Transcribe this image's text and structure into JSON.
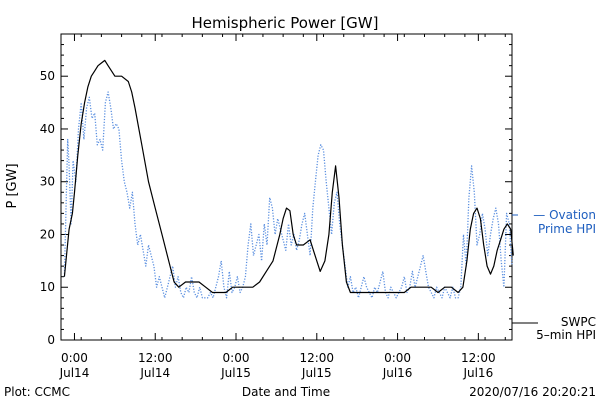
{
  "chart_data": {
    "type": "line",
    "title": "Hemispheric Power [GW]",
    "xlabel": "Date and Time",
    "ylabel": "P [GW]",
    "x_unit": "hours since 2020-07-14 00:00 UT",
    "xlim": [
      -2,
      65
    ],
    "ylim": [
      0,
      58
    ],
    "grid": false,
    "x_ticks": [
      {
        "x": 0,
        "top": "0:00",
        "bottom": "Jul14"
      },
      {
        "x": 12,
        "top": "12:00",
        "bottom": "Jul14"
      },
      {
        "x": 24,
        "top": "0:00",
        "bottom": "Jul15"
      },
      {
        "x": 36,
        "top": "12:00",
        "bottom": "Jul15"
      },
      {
        "x": 48,
        "top": "0:00",
        "bottom": "Jul16"
      },
      {
        "x": 60,
        "top": "12:00",
        "bottom": "Jul16"
      }
    ],
    "y_ticks": [
      0,
      10,
      20,
      30,
      40,
      50
    ],
    "legend": [
      {
        "lines": [
          "— Ovation",
          "Prime HPI"
        ],
        "color": "#1f5fbf",
        "style": "dotted"
      },
      {
        "lines": [
          "SWPC",
          "5–min HPI"
        ],
        "color": "#000000",
        "style": "solid"
      }
    ],
    "series": [
      {
        "name": "SWPC 5-min HPI",
        "color": "#000000",
        "style": "solid",
        "points": [
          [
            -1.5,
            12
          ],
          [
            -0.8,
            21
          ],
          [
            -0.3,
            24
          ],
          [
            0,
            28
          ],
          [
            0.5,
            35
          ],
          [
            1,
            41
          ],
          [
            1.5,
            45
          ],
          [
            2,
            48
          ],
          [
            2.5,
            50
          ],
          [
            3,
            51
          ],
          [
            3.5,
            52
          ],
          [
            4,
            52.5
          ],
          [
            4.5,
            53
          ],
          [
            5,
            52
          ],
          [
            5.5,
            51
          ],
          [
            6,
            50
          ],
          [
            7,
            50
          ],
          [
            8,
            49
          ],
          [
            8.5,
            47
          ],
          [
            9,
            44
          ],
          [
            10,
            37
          ],
          [
            11,
            30
          ],
          [
            12,
            25
          ],
          [
            13,
            20
          ],
          [
            14,
            15
          ],
          [
            14.8,
            11
          ],
          [
            15.5,
            10
          ],
          [
            16.5,
            11
          ],
          [
            17.5,
            11
          ],
          [
            18.5,
            11
          ],
          [
            19.5,
            10
          ],
          [
            20.5,
            9
          ],
          [
            21.5,
            9
          ],
          [
            22.5,
            9
          ],
          [
            23.5,
            10
          ],
          [
            24.5,
            10
          ],
          [
            25.5,
            10
          ],
          [
            26.5,
            10
          ],
          [
            27.5,
            11
          ],
          [
            28.5,
            13
          ],
          [
            29.5,
            15
          ],
          [
            30.5,
            20
          ],
          [
            31,
            23
          ],
          [
            31.5,
            25
          ],
          [
            32,
            24.5
          ],
          [
            32.5,
            20
          ],
          [
            33,
            18
          ],
          [
            34,
            18
          ],
          [
            35,
            19
          ],
          [
            35.5,
            17
          ],
          [
            36,
            15
          ],
          [
            36.5,
            13
          ],
          [
            37.2,
            15
          ],
          [
            37.8,
            20
          ],
          [
            38.3,
            28
          ],
          [
            38.8,
            33
          ],
          [
            39.3,
            27
          ],
          [
            39.8,
            18
          ],
          [
            40.4,
            11
          ],
          [
            41,
            9
          ],
          [
            42,
            9
          ],
          [
            43,
            9
          ],
          [
            44,
            9
          ],
          [
            45,
            9
          ],
          [
            46,
            9
          ],
          [
            47,
            9
          ],
          [
            48,
            9
          ],
          [
            49,
            9
          ],
          [
            50,
            10
          ],
          [
            51,
            10
          ],
          [
            52,
            10
          ],
          [
            53,
            10
          ],
          [
            54,
            9
          ],
          [
            55,
            10
          ],
          [
            56,
            10
          ],
          [
            57,
            9
          ],
          [
            57.7,
            10
          ],
          [
            58.3,
            15
          ],
          [
            58.8,
            21
          ],
          [
            59.3,
            24
          ],
          [
            59.8,
            25
          ],
          [
            60.3,
            23
          ],
          [
            60.8,
            18
          ],
          [
            61.3,
            14
          ],
          [
            61.8,
            12.5
          ],
          [
            62.3,
            14
          ],
          [
            62.8,
            17
          ],
          [
            63.3,
            19
          ],
          [
            63.8,
            21
          ],
          [
            64.3,
            22
          ],
          [
            64.8,
            21
          ],
          [
            65.2,
            16
          ]
        ]
      },
      {
        "name": "Ovation Prime HPI",
        "color": "#5a8fe0",
        "style": "dotted",
        "points": [
          [
            -1.5,
            12
          ],
          [
            -1.2,
            28
          ],
          [
            -1,
            38
          ],
          [
            -0.8,
            33
          ],
          [
            -0.5,
            22
          ],
          [
            -0.2,
            34
          ],
          [
            0.2,
            30
          ],
          [
            0.6,
            40
          ],
          [
            1,
            45
          ],
          [
            1.4,
            38
          ],
          [
            1.8,
            44
          ],
          [
            2.2,
            46
          ],
          [
            2.6,
            42
          ],
          [
            3,
            43
          ],
          [
            3.4,
            37
          ],
          [
            3.8,
            38
          ],
          [
            4.2,
            36
          ],
          [
            4.6,
            45
          ],
          [
            5,
            47
          ],
          [
            5.4,
            44
          ],
          [
            5.8,
            40
          ],
          [
            6.2,
            41
          ],
          [
            6.6,
            40
          ],
          [
            7,
            34
          ],
          [
            7.4,
            30
          ],
          [
            7.8,
            28
          ],
          [
            8.2,
            25
          ],
          [
            8.6,
            28
          ],
          [
            9,
            22
          ],
          [
            9.4,
            18
          ],
          [
            9.8,
            20
          ],
          [
            10.2,
            17
          ],
          [
            10.6,
            14
          ],
          [
            11,
            18
          ],
          [
            11.4,
            16
          ],
          [
            11.8,
            14
          ],
          [
            12.2,
            10
          ],
          [
            12.6,
            12
          ],
          [
            13,
            10
          ],
          [
            13.4,
            8
          ],
          [
            13.8,
            10
          ],
          [
            14.2,
            12
          ],
          [
            14.6,
            14
          ],
          [
            15,
            10
          ],
          [
            15.4,
            12
          ],
          [
            15.8,
            9
          ],
          [
            16.2,
            8
          ],
          [
            16.6,
            10
          ],
          [
            17,
            9
          ],
          [
            17.4,
            12
          ],
          [
            17.8,
            9
          ],
          [
            18.2,
            8
          ],
          [
            18.6,
            10
          ],
          [
            19,
            8
          ],
          [
            19.4,
            8
          ],
          [
            19.8,
            8
          ],
          [
            20.2,
            9
          ],
          [
            20.6,
            8
          ],
          [
            21,
            10
          ],
          [
            21.4,
            12
          ],
          [
            21.8,
            15
          ],
          [
            22.2,
            10
          ],
          [
            22.6,
            8
          ],
          [
            23,
            13
          ],
          [
            23.4,
            9
          ],
          [
            23.8,
            10
          ],
          [
            24.2,
            12
          ],
          [
            24.6,
            9
          ],
          [
            25,
            10
          ],
          [
            25.4,
            12
          ],
          [
            25.8,
            18
          ],
          [
            26.2,
            22
          ],
          [
            26.6,
            16
          ],
          [
            27,
            18
          ],
          [
            27.4,
            20
          ],
          [
            27.8,
            15
          ],
          [
            28.2,
            22
          ],
          [
            28.6,
            18
          ],
          [
            29,
            27
          ],
          [
            29.4,
            25
          ],
          [
            29.8,
            20
          ],
          [
            30.2,
            23
          ],
          [
            30.6,
            21
          ],
          [
            31,
            19
          ],
          [
            31.4,
            17
          ],
          [
            31.8,
            22
          ],
          [
            32.2,
            18
          ],
          [
            32.6,
            20
          ],
          [
            33,
            17
          ],
          [
            33.4,
            19
          ],
          [
            33.8,
            22
          ],
          [
            34.2,
            24
          ],
          [
            34.6,
            20
          ],
          [
            35,
            16
          ],
          [
            35.4,
            25
          ],
          [
            35.8,
            30
          ],
          [
            36.2,
            35
          ],
          [
            36.6,
            37
          ],
          [
            37,
            36
          ],
          [
            37.4,
            30
          ],
          [
            37.8,
            25
          ],
          [
            38.2,
            20
          ],
          [
            38.6,
            26
          ],
          [
            39,
            28
          ],
          [
            39.4,
            22
          ],
          [
            39.8,
            18
          ],
          [
            40.2,
            14
          ],
          [
            40.6,
            10
          ],
          [
            41,
            12
          ],
          [
            41.4,
            9
          ],
          [
            41.8,
            10
          ],
          [
            42.2,
            8
          ],
          [
            42.6,
            10
          ],
          [
            43,
            12
          ],
          [
            43.4,
            10
          ],
          [
            43.8,
            9
          ],
          [
            44.2,
            8
          ],
          [
            44.6,
            10
          ],
          [
            45,
            9
          ],
          [
            45.4,
            11
          ],
          [
            45.8,
            13
          ],
          [
            46.2,
            9
          ],
          [
            46.6,
            8
          ],
          [
            47,
            10
          ],
          [
            47.4,
            9
          ],
          [
            47.8,
            8
          ],
          [
            48.2,
            9
          ],
          [
            48.6,
            10
          ],
          [
            49,
            12
          ],
          [
            49.4,
            9
          ],
          [
            49.8,
            10
          ],
          [
            50.2,
            13
          ],
          [
            50.6,
            10
          ],
          [
            51,
            12
          ],
          [
            51.4,
            14
          ],
          [
            51.8,
            16
          ],
          [
            52.2,
            13
          ],
          [
            52.6,
            10
          ],
          [
            53,
            9
          ],
          [
            53.4,
            8
          ],
          [
            53.8,
            10
          ],
          [
            54.2,
            9
          ],
          [
            54.6,
            8
          ],
          [
            55,
            10
          ],
          [
            55.4,
            9
          ],
          [
            55.8,
            8
          ],
          [
            56.2,
            10
          ],
          [
            56.6,
            8
          ],
          [
            57,
            8
          ],
          [
            57.4,
            10
          ],
          [
            57.8,
            20
          ],
          [
            58.2,
            14
          ],
          [
            58.6,
            27
          ],
          [
            59,
            33
          ],
          [
            59.4,
            28
          ],
          [
            59.8,
            18
          ],
          [
            60.2,
            20
          ],
          [
            60.6,
            24
          ],
          [
            61,
            21
          ],
          [
            61.4,
            16
          ],
          [
            61.8,
            20
          ],
          [
            62.2,
            23
          ],
          [
            62.6,
            25
          ],
          [
            63,
            22
          ],
          [
            63.4,
            15
          ],
          [
            63.8,
            10
          ],
          [
            64.2,
            24
          ],
          [
            64.6,
            22
          ],
          [
            65,
            14
          ]
        ]
      }
    ],
    "footer": {
      "left": "Plot: CCMC",
      "right": "2020/07/16 20:20:21"
    }
  }
}
